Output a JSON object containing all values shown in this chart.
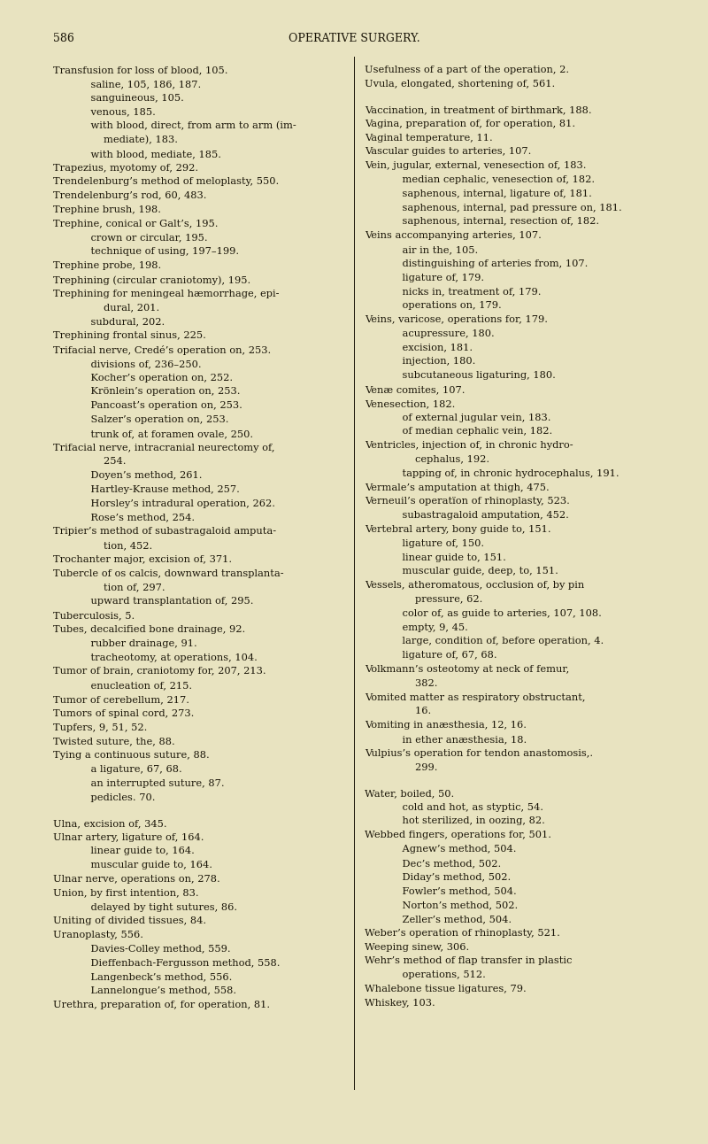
{
  "bg_color": "#e8e3c0",
  "text_color": "#1a1508",
  "page_number": "586",
  "header": "OPERATIVE SURGERY.",
  "font_size": 8.2,
  "header_font_size": 9.0,
  "figsize": [
    8.0,
    12.92
  ],
  "dpi": 100,
  "left_column": [
    [
      "T",
      "Transfusion for loss of blood, 105."
    ],
    [
      "I",
      "    saline, 105, 186, 187."
    ],
    [
      "I",
      "    sanguineous, 105."
    ],
    [
      "I",
      "    venous, 185."
    ],
    [
      "I",
      "    with blood, direct, from arm to arm (im-"
    ],
    [
      "I",
      "        mediate), 183."
    ],
    [
      "I",
      "    with blood, mediate, 185."
    ],
    [
      "T",
      "Trapezius, myotomy of, 292."
    ],
    [
      "T",
      "Trendelenburg’s method of meloplasty, 550."
    ],
    [
      "T",
      "Trendelenburg’s rod, 60, 483."
    ],
    [
      "T",
      "Trephine brush, 198."
    ],
    [
      "T",
      "Trephine, conical or Galt’s, 195."
    ],
    [
      "I",
      "    crown or circular, 195."
    ],
    [
      "I",
      "    technique of using, 197–199."
    ],
    [
      "T",
      "Trephine probe, 198."
    ],
    [
      "T",
      "Trephining (circular craniotomy), 195."
    ],
    [
      "T",
      "Trephining for meningeal hæmorrhage, epi-"
    ],
    [
      "I",
      "        dural, 201."
    ],
    [
      "I",
      "    subdural, 202."
    ],
    [
      "T",
      "Trephining frontal sinus, 225."
    ],
    [
      "T",
      "Trifacial nerve, Credé’s operation on, 253."
    ],
    [
      "I",
      "    divisions of, 236–250."
    ],
    [
      "I",
      "    Kocher’s operation on, 252."
    ],
    [
      "I",
      "    Krönlein’s operation on, 253."
    ],
    [
      "I",
      "    Pancoast’s operation on, 253."
    ],
    [
      "I",
      "    Salzer’s operation on, 253."
    ],
    [
      "I",
      "    trunk of, at foramen ovale, 250."
    ],
    [
      "T",
      "Trifacial nerve, intracranial neurectomy of,"
    ],
    [
      "I",
      "        254."
    ],
    [
      "I",
      "    Doyen’s method, 261."
    ],
    [
      "I",
      "    Hartley-Krause method, 257."
    ],
    [
      "I",
      "    Horsley’s intradural operation, 262."
    ],
    [
      "I",
      "    Rose’s method, 254."
    ],
    [
      "T",
      "Tripier’s method of subastragaloid amputa-"
    ],
    [
      "I",
      "        tion, 452."
    ],
    [
      "T",
      "Trochanter major, excision of, 371."
    ],
    [
      "T",
      "Tubercle of os calcis, downward transplanta-"
    ],
    [
      "I",
      "        tion of, 297."
    ],
    [
      "I",
      "    upward transplantation of, 295."
    ],
    [
      "T",
      "Tuberculosis, 5."
    ],
    [
      "T",
      "Tubes, decalcified bone drainage, 92."
    ],
    [
      "I",
      "    rubber drainage, 91."
    ],
    [
      "I",
      "    tracheotomy, at operations, 104."
    ],
    [
      "T",
      "Tumor of brain, craniotomy for, 207, 213."
    ],
    [
      "I",
      "    enucleation of, 215."
    ],
    [
      "T",
      "Tumor of cerebellum, 217."
    ],
    [
      "T",
      "Tumors of spinal cord, 273."
    ],
    [
      "T",
      "Tupfers, 9, 51, 52."
    ],
    [
      "T",
      "Twisted suture, the, 88."
    ],
    [
      "T",
      "Tying a continuous suture, 88."
    ],
    [
      "I",
      "    a ligature, 67, 68."
    ],
    [
      "I",
      "    an interrupted suture, 87."
    ],
    [
      "I",
      "    pedicles. 70."
    ],
    [
      "B",
      ""
    ],
    [
      "T",
      "Ulna, excision of, 345."
    ],
    [
      "T",
      "Ulnar artery, ligature of, 164."
    ],
    [
      "I",
      "    linear guide to, 164."
    ],
    [
      "I",
      "    muscular guide to, 164."
    ],
    [
      "T",
      "Ulnar nerve, operations on, 278."
    ],
    [
      "T",
      "Union, by first intention, 83."
    ],
    [
      "I",
      "    delayed by tight sutures, 86."
    ],
    [
      "T",
      "Uniting of divided tissues, 84."
    ],
    [
      "T",
      "Uranoplasty, 556."
    ],
    [
      "I",
      "    Davies-Colley method, 559."
    ],
    [
      "I",
      "    Dieffenbach-Fergusson method, 558."
    ],
    [
      "I",
      "    Langenbeck’s method, 556."
    ],
    [
      "I",
      "    Lannelongue’s method, 558."
    ],
    [
      "T",
      "Urethra, preparation of, for operation, 81."
    ]
  ],
  "right_column": [
    [
      "T",
      "Usefulness of a part of the operation, 2."
    ],
    [
      "T",
      "Uvula, elongated, shortening of, 561."
    ],
    [
      "B",
      ""
    ],
    [
      "T",
      "Vaccination, in treatment of birthmark, 188."
    ],
    [
      "T",
      "Vagina, preparation of, for operation, 81."
    ],
    [
      "T",
      "Vaginal temperature, 11."
    ],
    [
      "T",
      "Vascular guides to arteries, 107."
    ],
    [
      "T",
      "Vein, jugular, external, venesection of, 183."
    ],
    [
      "I",
      "    median cephalic, venesection of, 182."
    ],
    [
      "I",
      "    saphenous, internal, ligature of, 181."
    ],
    [
      "I",
      "    saphenous, internal, pad pressure on, 181."
    ],
    [
      "I",
      "    saphenous, internal, resection of, 182."
    ],
    [
      "T",
      "Veins accompanying arteries, 107."
    ],
    [
      "I",
      "    air in the, 105."
    ],
    [
      "I",
      "    distinguishing of arteries from, 107."
    ],
    [
      "I",
      "    ligature of, 179."
    ],
    [
      "I",
      "    nicks in, treatment of, 179."
    ],
    [
      "I",
      "    operations on, 179."
    ],
    [
      "T",
      "Veins, varicose, operations for, 179."
    ],
    [
      "I",
      "    acupressure, 180."
    ],
    [
      "I",
      "    excision, 181."
    ],
    [
      "I",
      "    injection, 180."
    ],
    [
      "I",
      "    subcutaneous ligaturing, 180."
    ],
    [
      "T",
      "Venæ comites, 107."
    ],
    [
      "T",
      "Venesection, 182."
    ],
    [
      "I",
      "    of external jugular vein, 183."
    ],
    [
      "I",
      "    of median cephalic vein, 182."
    ],
    [
      "T",
      "Ventricles, injection of, in chronic hydro-"
    ],
    [
      "I",
      "        cephalus, 192."
    ],
    [
      "I",
      "    tapping of, in chronic hydrocephalus, 191."
    ],
    [
      "T",
      "Vermale’s amputation at thigh, 475."
    ],
    [
      "T",
      "Verneuil’s operatïon of rhinoplasty, 523."
    ],
    [
      "I",
      "    subastragaloid amputation, 452."
    ],
    [
      "T",
      "Vertebral artery, bony guide to, 151."
    ],
    [
      "I",
      "    ligature of, 150."
    ],
    [
      "I",
      "    linear guide to, 151."
    ],
    [
      "I",
      "    muscular guide, deep, to, 151."
    ],
    [
      "T",
      "Vessels, atheromatous, occlusion of, by pin"
    ],
    [
      "I",
      "        pressure, 62."
    ],
    [
      "I",
      "    color of, as guide to arteries, 107, 108."
    ],
    [
      "I",
      "    empty, 9, 45."
    ],
    [
      "I",
      "    large, condition of, before operation, 4."
    ],
    [
      "I",
      "    ligature of, 67, 68."
    ],
    [
      "T",
      "Volkmann’s osteotomy at neck of femur,"
    ],
    [
      "I",
      "        382."
    ],
    [
      "T",
      "Vomited matter as respiratory obstructant,"
    ],
    [
      "I",
      "        16."
    ],
    [
      "T",
      "Vomiting in anæsthesia, 12, 16."
    ],
    [
      "I",
      "    in ether anæsthesia, 18."
    ],
    [
      "T",
      "Vulpius’s operation for tendon anastomosis,."
    ],
    [
      "I",
      "        299."
    ],
    [
      "B",
      ""
    ],
    [
      "T",
      "Water, boiled, 50."
    ],
    [
      "I",
      "    cold and hot, as styptic, 54."
    ],
    [
      "I",
      "    hot sterilized, in oozing, 82."
    ],
    [
      "T",
      "Webbed fingers, operations for, 501."
    ],
    [
      "I",
      "    Agnew’s method, 504."
    ],
    [
      "I",
      "    Dec’s method, 502."
    ],
    [
      "I",
      "    Diday’s method, 502."
    ],
    [
      "I",
      "    Fowler’s method, 504."
    ],
    [
      "I",
      "    Norton’s method, 502."
    ],
    [
      "I",
      "    Zeller’s method, 504."
    ],
    [
      "T",
      "Weber’s operation of rhinoplasty, 521."
    ],
    [
      "T",
      "Weeping sinew, 306."
    ],
    [
      "T",
      "Wehr’s method of flap transfer in plastic"
    ],
    [
      "I",
      "    operations, 512."
    ],
    [
      "T",
      "Whalebone tissue ligatures, 79."
    ],
    [
      "T",
      "Whiskey, 103."
    ]
  ]
}
